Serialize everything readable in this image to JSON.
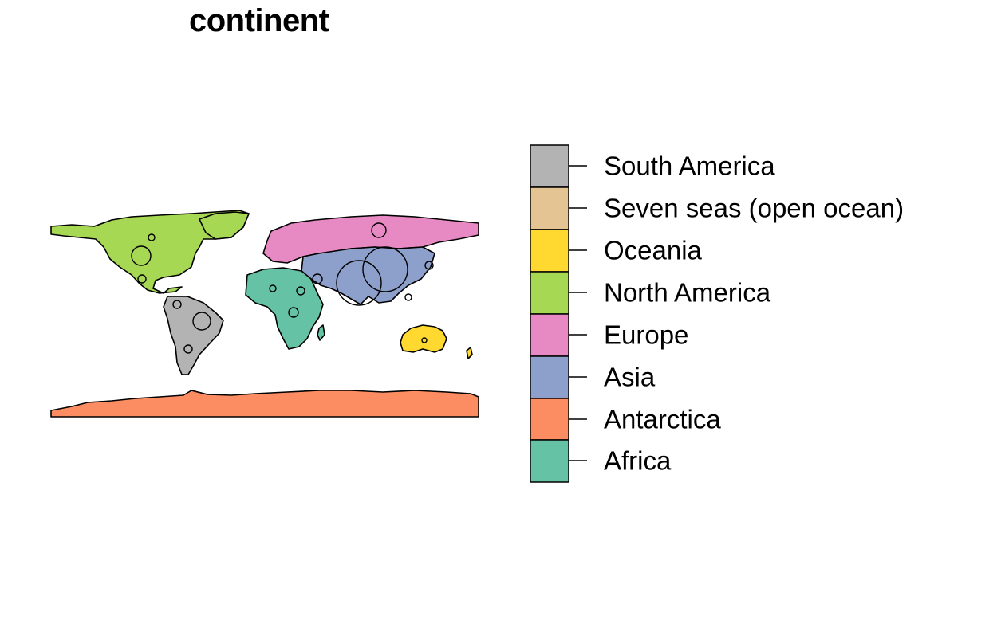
{
  "title": "continent",
  "legend": {
    "items": [
      {
        "label": "South America",
        "color": "#b3b3b3"
      },
      {
        "label": "Seven seas (open ocean)",
        "color": "#e5c494"
      },
      {
        "label": "Oceania",
        "color": "#ffd92f"
      },
      {
        "label": "North America",
        "color": "#a6d854"
      },
      {
        "label": "Europe",
        "color": "#e78ac3"
      },
      {
        "label": "Asia",
        "color": "#8da0cb"
      },
      {
        "label": "Antarctica",
        "color": "#fc8d62"
      },
      {
        "label": "Africa",
        "color": "#66c2a5"
      }
    ]
  }
}
